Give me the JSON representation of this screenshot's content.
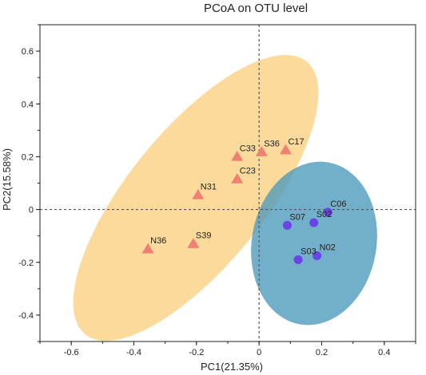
{
  "chart_data": {
    "type": "scatter",
    "title": "PCoA on OTU level",
    "xlabel": "PC1(21.35%)",
    "ylabel": "PC2(15.58%)",
    "xlim": [
      -0.7,
      0.5
    ],
    "ylim": [
      -0.5,
      0.7
    ],
    "xticks": [
      -0.6,
      -0.4,
      -0.2,
      0,
      0.2,
      0.4
    ],
    "yticks": [
      -0.4,
      -0.2,
      0,
      0.2,
      0.4,
      0.6
    ],
    "xtick_labels": [
      "-0.6",
      "-0.4",
      "-0.2",
      "0",
      "0.2",
      "0.4"
    ],
    "ytick_labels": [
      "-0.4",
      "-0.2",
      "0",
      "0.2",
      "0.4",
      "0.6"
    ],
    "reference_lines": {
      "x": 0,
      "y": 0,
      "style": "dashed"
    },
    "groups": [
      {
        "marker": "triangle",
        "color": "#f08070",
        "ellipse_color": "#fcd48a",
        "points": [
          {
            "label": "C17",
            "x": 0.085,
            "y": 0.225
          },
          {
            "label": "S36",
            "x": 0.008,
            "y": 0.218
          },
          {
            "label": "C33",
            "x": -0.07,
            "y": 0.2
          },
          {
            "label": "C23",
            "x": -0.07,
            "y": 0.115
          },
          {
            "label": "N31",
            "x": -0.195,
            "y": 0.055
          },
          {
            "label": "S39",
            "x": -0.21,
            "y": -0.13
          },
          {
            "label": "N36",
            "x": -0.355,
            "y": -0.15
          }
        ]
      },
      {
        "marker": "circle",
        "color": "#6a44e6",
        "ellipse_color": "#4f9bbd",
        "points": [
          {
            "label": "C06",
            "x": 0.22,
            "y": -0.01
          },
          {
            "label": "S02",
            "x": 0.175,
            "y": -0.05
          },
          {
            "label": "S07",
            "x": 0.09,
            "y": -0.06
          },
          {
            "label": "N02",
            "x": 0.185,
            "y": -0.175
          },
          {
            "label": "S03",
            "x": 0.125,
            "y": -0.19
          }
        ]
      }
    ],
    "grid": false,
    "legend": "none"
  }
}
